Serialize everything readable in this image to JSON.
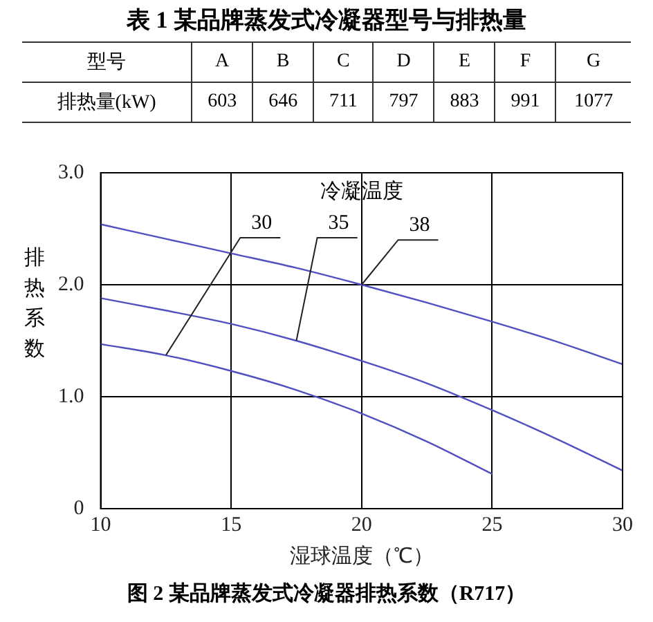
{
  "chart_data": [
    {
      "type": "other",
      "title": "表 1 某品牌蒸发式冷凝器型号与排热量",
      "xlabel": "型号",
      "data_labels": true,
      "categories": [
        "A",
        "B",
        "C",
        "D",
        "E",
        "F",
        "G"
      ],
      "series": [
        {
          "name": "排热量(kW)",
          "values": [
            603,
            646,
            711,
            797,
            883,
            991,
            1077
          ]
        }
      ]
    },
    {
      "type": "line",
      "title": "图 2 某品牌蒸发式冷凝器排热系数（R717）",
      "xlabel": "湿球温度（℃）",
      "ylabel": "排热系数",
      "legend_title": "冷凝温度",
      "xlim": [
        10,
        30
      ],
      "xticks": [
        10,
        15,
        20,
        25,
        30
      ],
      "ylim": [
        0,
        3
      ],
      "yticks": [
        0,
        {
          "value": 1,
          "label": "1.0"
        },
        {
          "value": 2,
          "label": "2.0"
        },
        {
          "value": 3,
          "label": "3.0"
        }
      ],
      "grid": true,
      "legend": false,
      "marker": "none",
      "line_style": "solid",
      "series": [
        {
          "name": "30",
          "color": "#5050c0",
          "x": [
            10,
            12.5,
            15,
            17.5,
            20,
            22.5,
            25
          ],
          "values": [
            1.47,
            1.37,
            1.23,
            1.06,
            0.85,
            0.6,
            0.31
          ]
        },
        {
          "name": "35",
          "color": "#5050c0",
          "x": [
            10,
            12.5,
            15,
            17.5,
            20,
            22.5,
            25,
            27.5,
            30
          ],
          "values": [
            1.88,
            1.77,
            1.65,
            1.5,
            1.32,
            1.12,
            0.88,
            0.62,
            0.34
          ]
        },
        {
          "name": "38",
          "color": "#5050c0",
          "x": [
            10,
            12.5,
            15,
            17.5,
            20,
            22.5,
            25,
            27.5,
            30
          ],
          "values": [
            2.54,
            2.41,
            2.28,
            2.15,
            2.0,
            1.84,
            1.67,
            1.49,
            1.29
          ]
        }
      ]
    }
  ]
}
